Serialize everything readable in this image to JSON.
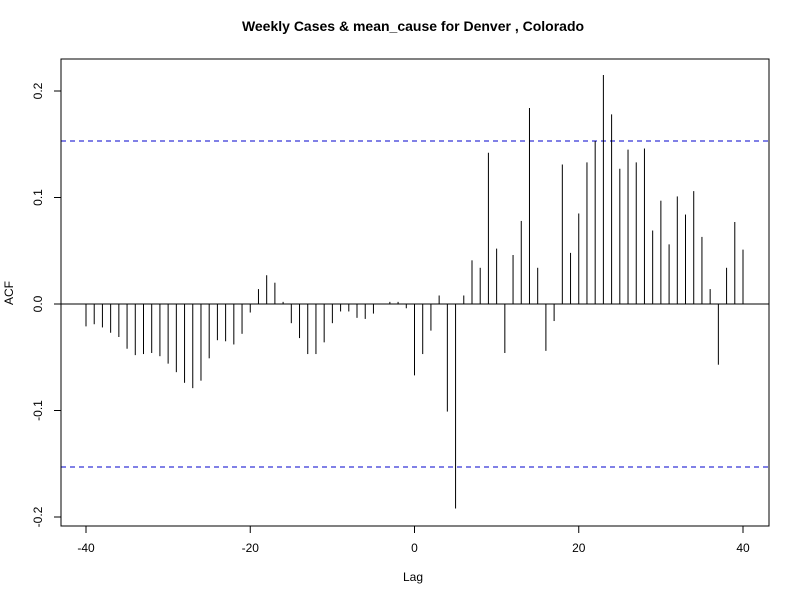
{
  "chart_data": {
    "type": "bar",
    "title": "Weekly Cases & mean_cause for Denver , Colorado",
    "xlabel": "Lag",
    "ylabel": "ACF",
    "xlim": [
      -41,
      41
    ],
    "ylim": [
      -0.2,
      0.22
    ],
    "x_ticks": [
      -40,
      -20,
      0,
      20,
      40
    ],
    "y_ticks": [
      -0.2,
      -0.1,
      0.0,
      0.1,
      0.2
    ],
    "x_tick_labels": [
      "-40",
      "-20",
      "0",
      "20",
      "40"
    ],
    "y_tick_labels": [
      "-0.2",
      "-0.1",
      "0.0",
      "0.1",
      "0.2"
    ],
    "confidence_band": 0.153,
    "series_color": "#000000",
    "band_color": "#0000cc",
    "lags": [
      -40,
      -39,
      -38,
      -37,
      -36,
      -35,
      -34,
      -33,
      -32,
      -31,
      -30,
      -29,
      -28,
      -27,
      -26,
      -25,
      -24,
      -23,
      -22,
      -21,
      -20,
      -19,
      -18,
      -17,
      -16,
      -15,
      -14,
      -13,
      -12,
      -11,
      -10,
      -9,
      -8,
      -7,
      -6,
      -5,
      -4,
      -3,
      -2,
      -1,
      0,
      1,
      2,
      3,
      4,
      5,
      6,
      7,
      8,
      9,
      10,
      11,
      12,
      13,
      14,
      15,
      16,
      17,
      18,
      19,
      20,
      21,
      22,
      23,
      24,
      25,
      26,
      27,
      28,
      29,
      30,
      31,
      32,
      33,
      34,
      35,
      36,
      37,
      38,
      39,
      40
    ],
    "acf": [
      -0.021,
      -0.019,
      -0.022,
      -0.027,
      -0.031,
      -0.042,
      -0.048,
      -0.047,
      -0.046,
      -0.049,
      -0.056,
      -0.064,
      -0.074,
      -0.079,
      -0.072,
      -0.051,
      -0.034,
      -0.035,
      -0.038,
      -0.028,
      -0.008,
      0.014,
      0.027,
      0.02,
      0.002,
      -0.018,
      -0.032,
      -0.047,
      -0.047,
      -0.036,
      -0.018,
      -0.007,
      -0.007,
      -0.013,
      -0.014,
      -0.009,
      0.0,
      0.002,
      0.002,
      -0.004,
      -0.067,
      -0.047,
      -0.025,
      0.008,
      -0.101,
      -0.192,
      0.008,
      0.041,
      0.034,
      0.142,
      0.052,
      -0.046,
      0.046,
      0.078,
      0.184,
      0.034,
      -0.044,
      -0.016,
      0.131,
      0.048,
      0.085,
      0.133,
      0.153,
      0.215,
      0.178,
      0.127,
      0.145,
      0.133,
      0.146,
      0.069,
      0.097,
      0.056,
      0.101,
      0.084,
      0.106,
      0.063,
      0.014,
      -0.057,
      0.034,
      0.077,
      0.051
    ]
  }
}
